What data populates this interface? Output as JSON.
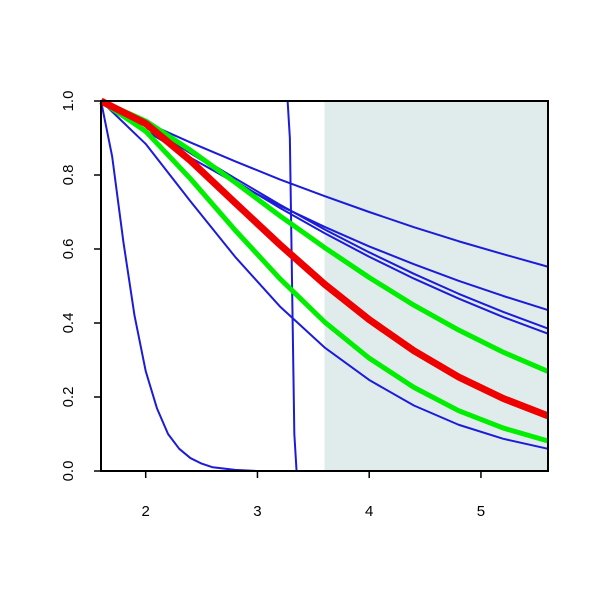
{
  "chart_data": {
    "type": "line",
    "xlim": [
      1.6,
      5.6
    ],
    "ylim": [
      0,
      1
    ],
    "xticks": [
      2,
      3,
      4,
      5
    ],
    "yticks": [
      {
        "value": 0,
        "label": "0.0"
      },
      0.2,
      0.4,
      0.6,
      0.8,
      {
        "value": 1,
        "label": "1.0"
      }
    ],
    "shade_from_x": 3.6,
    "shade_color": "#e0ecec",
    "series": [
      {
        "color": "#1c1cd8",
        "width": 2,
        "x": [
          1.6,
          2.0,
          2.4,
          2.8,
          3.2,
          3.6,
          4.0,
          4.4,
          4.8,
          5.2,
          5.6
        ],
        "values": [
          1,
          0.942,
          0.888,
          0.837,
          0.788,
          0.743,
          0.7,
          0.659,
          0.621,
          0.586,
          0.552
        ]
      },
      {
        "color": "#1c1cd8",
        "width": 2,
        "x": [
          1.6,
          2.0,
          2.4,
          2.8,
          3.2,
          3.6,
          4.0,
          4.4,
          4.8,
          5.2,
          5.6
        ],
        "values": [
          1,
          0.92,
          0.847,
          0.779,
          0.717,
          0.66,
          0.607,
          0.559,
          0.514,
          0.473,
          0.435
        ]
      },
      {
        "color": "#1c1cd8",
        "width": 2,
        "x": [
          1.6,
          2.0,
          2.4,
          2.8,
          3.2,
          3.6,
          4.0,
          4.4,
          4.8,
          5.2,
          5.6
        ],
        "values": [
          1,
          0.934,
          0.859,
          0.784,
          0.711,
          0.643,
          0.579,
          0.52,
          0.466,
          0.416,
          0.371
        ]
      },
      {
        "color": "#1c1cd8",
        "width": 2,
        "x": [
          1.6,
          2.0,
          2.4,
          2.8,
          3.2,
          3.6,
          4.0,
          4.4,
          4.8,
          5.2,
          5.6
        ],
        "values": [
          1,
          0.937,
          0.864,
          0.791,
          0.72,
          0.653,
          0.591,
          0.533,
          0.479,
          0.43,
          0.385
        ]
      },
      {
        "color": "#1c1cd8",
        "width": 2,
        "x": [
          1.6,
          2.0,
          2.4,
          2.8,
          3.2,
          3.6,
          4.0,
          4.4,
          4.8,
          5.2,
          5.6
        ],
        "values": [
          1,
          0.884,
          0.729,
          0.579,
          0.445,
          0.334,
          0.246,
          0.177,
          0.125,
          0.087,
          0.06
        ]
      },
      {
        "color": "#1c1cd8",
        "width": 2,
        "x": [
          1.6,
          1.7,
          1.8,
          1.9,
          2.0,
          2.1,
          2.2,
          2.3,
          2.4,
          2.5,
          2.6,
          2.8,
          3.0
        ],
        "values": [
          1,
          0.85,
          0.62,
          0.42,
          0.27,
          0.17,
          0.1,
          0.06,
          0.035,
          0.02,
          0.01,
          0.003,
          0
        ]
      },
      {
        "color": "#1c1cd8",
        "width": 2,
        "x": [
          1.6,
          3.27,
          3.29,
          3.31,
          3.33,
          3.35,
          5.6
        ],
        "values": [
          1,
          1,
          0.9,
          0.5,
          0.1,
          0,
          0
        ]
      },
      {
        "color": "#00ee00",
        "width": 5,
        "x": [
          1.6,
          2.0,
          2.4,
          2.8,
          3.2,
          3.6,
          4.0,
          4.4,
          4.8,
          5.2,
          5.6
        ],
        "values": [
          1,
          0.946,
          0.867,
          0.78,
          0.69,
          0.604,
          0.523,
          0.448,
          0.381,
          0.321,
          0.269
        ]
      },
      {
        "color": "#00ee00",
        "width": 5,
        "x": [
          1.6,
          2.0,
          2.4,
          2.8,
          3.2,
          3.6,
          4.0,
          4.4,
          4.8,
          5.2,
          5.6
        ],
        "values": [
          1,
          0.918,
          0.79,
          0.651,
          0.52,
          0.403,
          0.305,
          0.226,
          0.163,
          0.116,
          0.081
        ]
      },
      {
        "color": "#ee0000",
        "width": 7,
        "x": [
          1.6,
          2.0,
          2.4,
          2.8,
          3.2,
          3.6,
          4.0,
          4.4,
          4.8,
          5.2,
          5.6
        ],
        "values": [
          1,
          0.939,
          0.839,
          0.725,
          0.612,
          0.505,
          0.409,
          0.325,
          0.254,
          0.196,
          0.149
        ]
      }
    ]
  }
}
